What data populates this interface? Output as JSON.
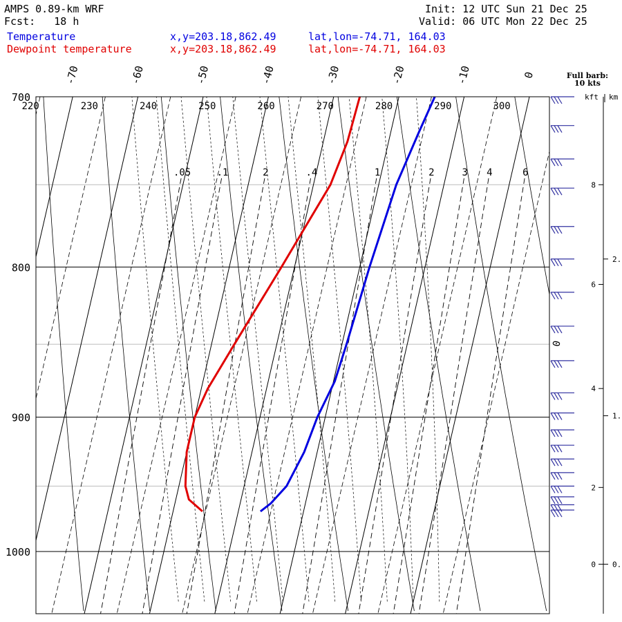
{
  "header": {
    "model": "AMPS 0.89-km WRF",
    "fcst": "Fcst:   18 h",
    "init": "Init: 12 UTC Sun 21 Dec 25",
    "valid": "Valid: 06 UTC Mon 22 Dec 25",
    "temp_label": "Temperature",
    "temp_xy": "x,y=203.18,862.49",
    "temp_latlon": "lat,lon=-74.71, 164.03",
    "dew_label": "Dewpoint temperature",
    "dew_xy": "x,y=203.18,862.49",
    "dew_latlon": "lat,lon=-74.71, 164.03"
  },
  "barb_note": {
    "line1": "Full barb:",
    "line2": "10 kts"
  },
  "height_axis": {
    "kft_label": "kft",
    "km_label": "km"
  },
  "colors": {
    "temperature": "#0000e0",
    "dewpoint": "#e00000",
    "axes": "#000000",
    "grid": "#bbbbbb"
  },
  "chart_data": {
    "type": "line",
    "chart_kind": "skew-T log-p",
    "pressure_ticks": [
      700,
      800,
      900,
      1000
    ],
    "pressure_range_hpa": [
      700,
      1040
    ],
    "temperature_ticks_c": [
      -70,
      -60,
      -50,
      -40,
      -30,
      -20,
      -10,
      0
    ],
    "theta_labels_k": [
      220,
      230,
      240,
      250,
      260,
      270,
      280,
      290,
      300
    ],
    "mixing_ratio_labels": [
      ".05",
      ".1",
      "2",
      ".4",
      "1",
      "2",
      "3",
      "4",
      "6"
    ],
    "freezing_label": "0",
    "kft_ticks": [
      {
        "label": "8",
        "p": 750
      },
      {
        "label": "6",
        "p": 811
      },
      {
        "label": "4",
        "p": 880
      },
      {
        "label": "2",
        "p": 951
      },
      {
        "label": "0",
        "p": 1010
      }
    ],
    "km_ticks": [
      {
        "label": "2.",
        "p": 795
      },
      {
        "label": "1.",
        "p": 899
      },
      {
        "label": "0.",
        "p": 1010
      }
    ],
    "series": [
      {
        "name": "Temperature",
        "points": [
          {
            "p": 700,
            "t": -14.5
          },
          {
            "p": 720,
            "t": -15.7
          },
          {
            "p": 750,
            "t": -17.3
          },
          {
            "p": 800,
            "t": -18.5
          },
          {
            "p": 850,
            "t": -19.3
          },
          {
            "p": 875,
            "t": -19.8
          },
          {
            "p": 900,
            "t": -21.2
          },
          {
            "p": 925,
            "t": -22.0
          },
          {
            "p": 950,
            "t": -23.5
          },
          {
            "p": 963,
            "t": -25.3
          },
          {
            "p": 969,
            "t": -26.6
          }
        ]
      },
      {
        "name": "Dewpoint temperature",
        "points": [
          {
            "p": 700,
            "t": -26.0
          },
          {
            "p": 725,
            "t": -26.3
          },
          {
            "p": 750,
            "t": -27.4
          },
          {
            "p": 800,
            "t": -32.0
          },
          {
            "p": 850,
            "t": -36.5
          },
          {
            "p": 880,
            "t": -39.0
          },
          {
            "p": 900,
            "t": -40.0
          },
          {
            "p": 925,
            "t": -40.0
          },
          {
            "p": 950,
            "t": -39.0
          },
          {
            "p": 960,
            "t": -38.0
          },
          {
            "p": 969,
            "t": -35.5
          }
        ]
      }
    ],
    "wind_barbs_p": [
      700,
      716,
      735,
      752,
      775,
      795,
      816,
      838,
      861,
      883,
      897,
      909,
      920,
      930,
      940,
      950,
      958,
      964,
      968
    ],
    "grid": true
  }
}
